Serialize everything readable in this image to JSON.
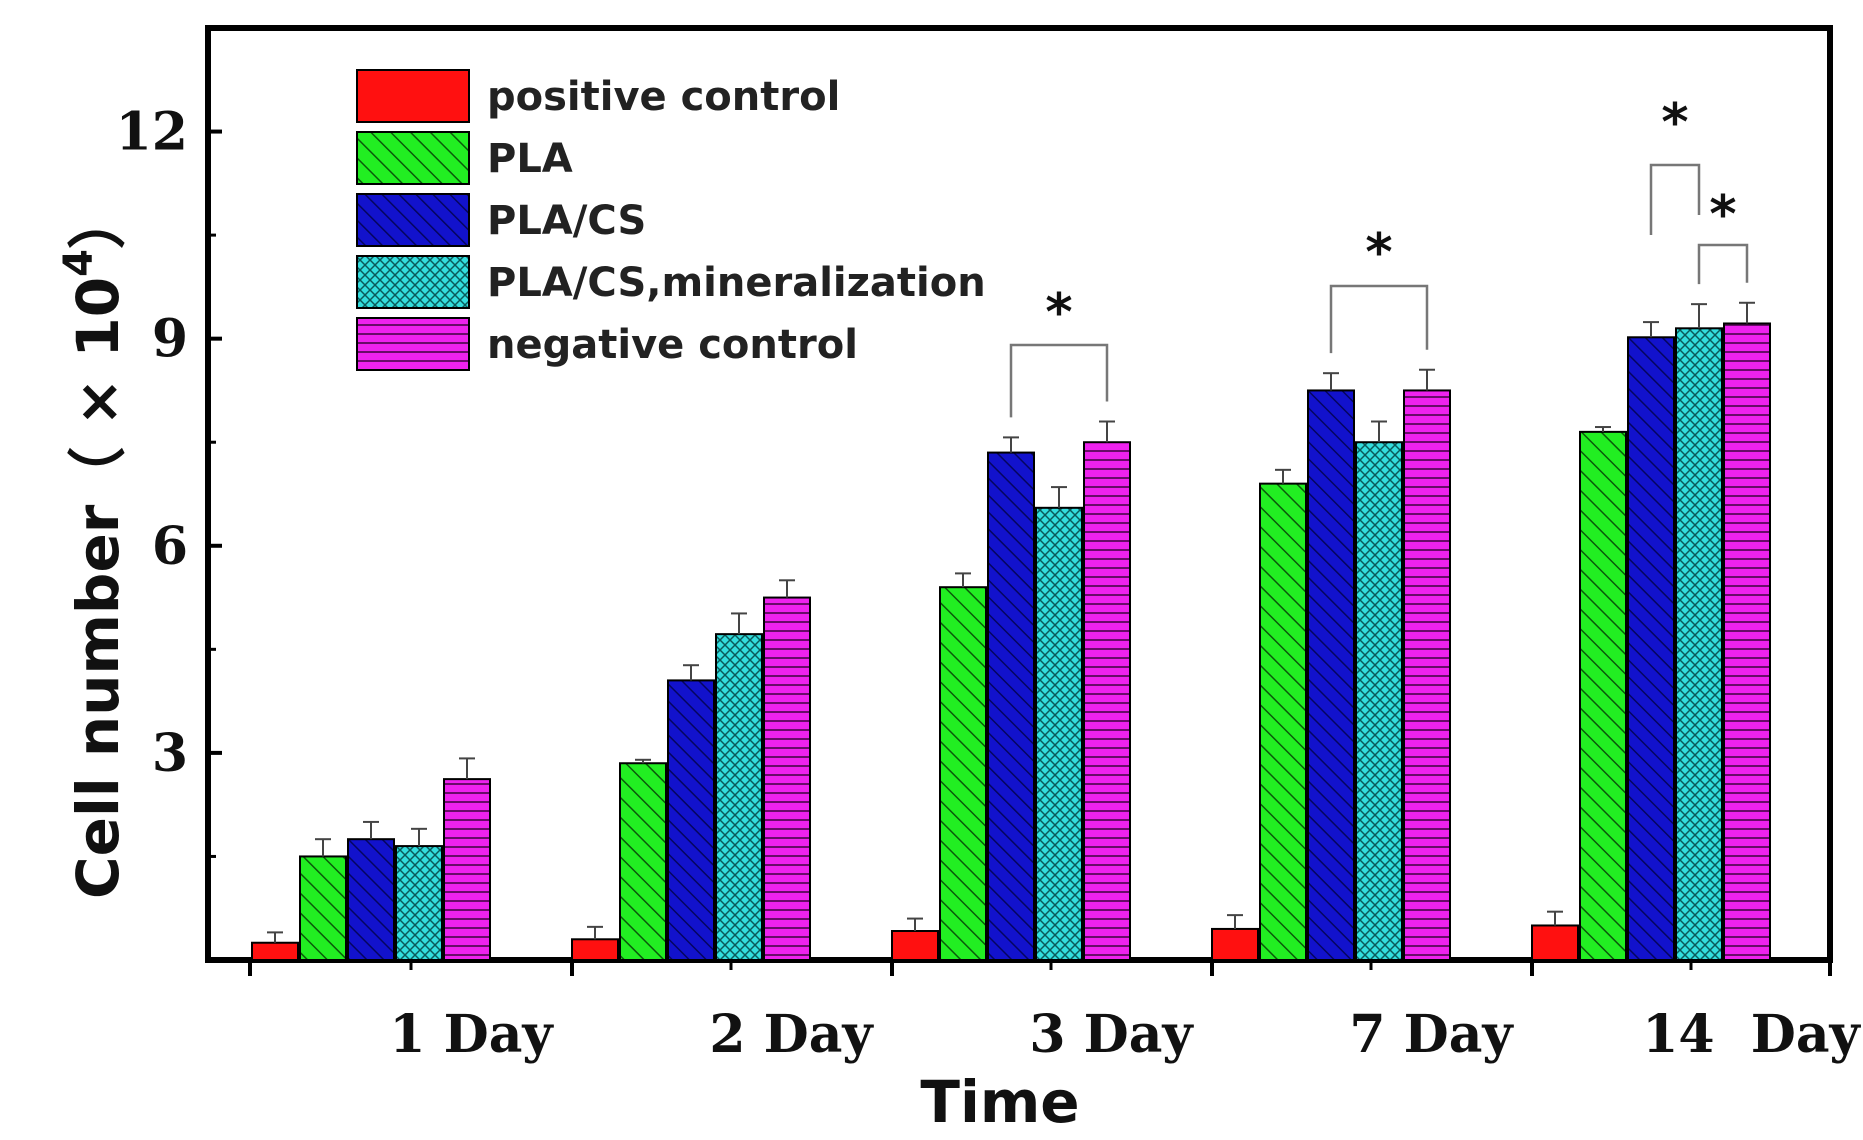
{
  "chart_data": {
    "type": "bar",
    "xlabel": "Time",
    "ylabel": "Cell number（ × 10",
    "ylabel_superscript": "4",
    "ylabel_close": "）",
    "ylim": [
      0,
      13.5
    ],
    "yticks": [
      "3",
      "6",
      "9",
      "12"
    ],
    "ytick_values": [
      3,
      6,
      9,
      12
    ],
    "categories": [
      "1 Day",
      "2 Day",
      "3 Day",
      "7 Day",
      "14  Day"
    ],
    "legend_position": "top-left inside plot",
    "grid": false,
    "series": [
      {
        "name": "positive control",
        "color": "#ff1010",
        "pattern": "solid",
        "values": [
          0.25,
          0.3,
          0.42,
          0.45,
          0.5
        ],
        "errors": [
          0.15,
          0.18,
          0.18,
          0.2,
          0.2
        ]
      },
      {
        "name": "PLA",
        "color": "#22ee22",
        "pattern": "diagonal-hatch",
        "values": [
          1.5,
          2.85,
          5.4,
          6.9,
          7.65
        ],
        "errors": [
          0.25,
          0.05,
          0.2,
          0.2,
          0.07
        ]
      },
      {
        "name": "PLA/CS",
        "color": "#1010cc",
        "pattern": "diagonal-hatch-dark",
        "values": [
          1.75,
          4.05,
          7.35,
          8.25,
          9.02
        ],
        "errors": [
          0.25,
          0.22,
          0.22,
          0.25,
          0.22
        ]
      },
      {
        "name": "PLA/CS,mineralization",
        "color": "#33dddd",
        "pattern": "crosshatch",
        "values": [
          1.65,
          4.72,
          6.55,
          7.5,
          9.15
        ],
        "errors": [
          0.25,
          0.3,
          0.3,
          0.3,
          0.35
        ]
      },
      {
        "name": "negative control",
        "color": "#ee22ee",
        "pattern": "horizontal-lines",
        "values": [
          2.62,
          5.25,
          7.5,
          8.25,
          9.22
        ],
        "errors": [
          0.3,
          0.25,
          0.3,
          0.3,
          0.3
        ]
      }
    ],
    "significance": [
      {
        "label": "*",
        "group": 2,
        "from_series": 2,
        "to_series": 4
      },
      {
        "label": "*",
        "group": 3,
        "from_series": 2,
        "to_series": 4
      },
      {
        "label": "*",
        "group": 4,
        "from_series": 2,
        "to_series": 3
      },
      {
        "label": "*",
        "group": 4,
        "from_series": 3,
        "to_series": 4
      }
    ]
  }
}
